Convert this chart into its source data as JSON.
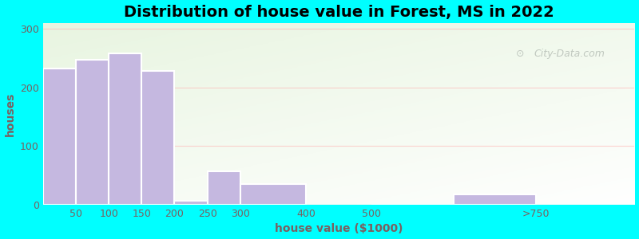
{
  "title": "Distribution of house value in Forest, MS in 2022",
  "xlabel": "house value ($1000)",
  "ylabel": "houses",
  "tick_positions": [
    50,
    100,
    150,
    200,
    250,
    300,
    400,
    500,
    750
  ],
  "tick_labels": [
    "50",
    "100",
    "150",
    "200",
    "250",
    "300",
    "400",
    "500",
    ">750"
  ],
  "bar_lefts": [
    0,
    50,
    100,
    150,
    200,
    250,
    300,
    500,
    625
  ],
  "bar_widths": [
    50,
    50,
    50,
    50,
    50,
    50,
    100,
    125,
    125
  ],
  "bar_values": [
    233,
    248,
    258,
    228,
    7,
    57,
    35,
    0,
    18
  ],
  "bar_color": "#c5b8e0",
  "bar_edge_color": "#ffffff",
  "background_color": "#00ffff",
  "yticks": [
    0,
    100,
    200,
    300
  ],
  "ylim": [
    0,
    310
  ],
  "xlim": [
    0,
    900
  ],
  "title_fontsize": 14,
  "axis_label_fontsize": 10,
  "tick_fontsize": 9,
  "tick_color": "#7a6060",
  "watermark_text": "City-Data.com"
}
